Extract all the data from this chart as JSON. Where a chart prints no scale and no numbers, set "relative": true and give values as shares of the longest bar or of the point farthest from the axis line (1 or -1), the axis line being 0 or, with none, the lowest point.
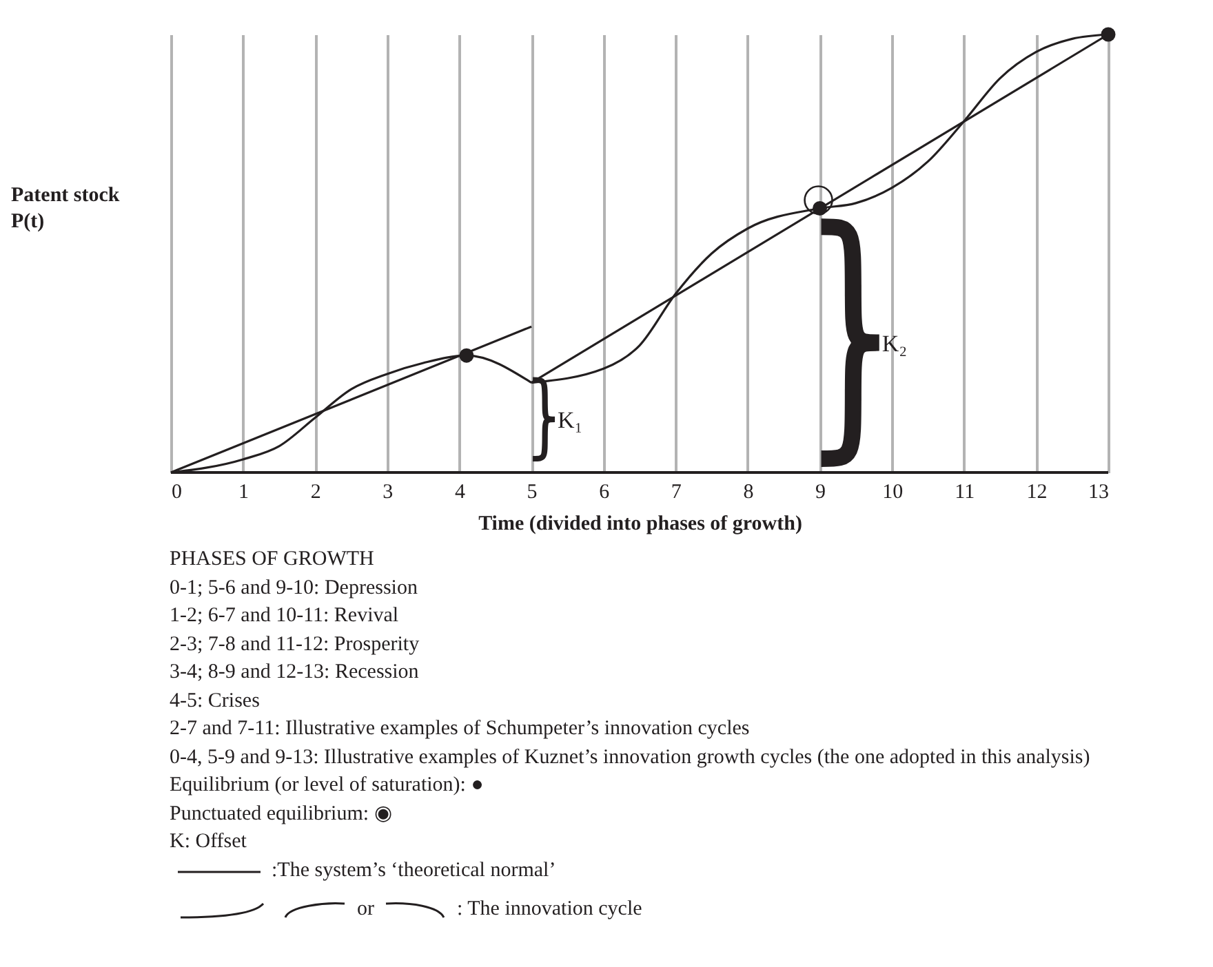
{
  "chart_data": {
    "type": "line",
    "relative": true,
    "xlabel": "Time (divided into phases of growth)",
    "ylabel": "Patent stock P(t)",
    "xlim": [
      0,
      13
    ],
    "xticks": [
      0,
      1,
      2,
      3,
      4,
      5,
      6,
      7,
      8,
      9,
      10,
      11,
      12,
      13
    ],
    "grid": "x",
    "marker": "none",
    "line_style": "solid",
    "series": [
      {
        "color": "#231f20",
        "x": [
          0,
          5
        ],
        "values": [
          0,
          0.333
        ]
      },
      {
        "color": "#231f20",
        "x": [
          5,
          13
        ],
        "values": [
          0.205,
          1
        ]
      },
      {
        "color": "#231f20",
        "x": [
          0,
          1,
          1.5,
          2,
          2.5,
          3,
          3.5,
          4.1,
          5
        ],
        "values": [
          0,
          0.03,
          0.06,
          0.125,
          0.19,
          0.225,
          0.25,
          0.267,
          0.205
        ]
      },
      {
        "color": "#231f20",
        "x": [
          5,
          6,
          6.5,
          7,
          7.5,
          8,
          9,
          9.5,
          10,
          10.5,
          11,
          11.5,
          12,
          12.5,
          13
        ],
        "values": [
          0.205,
          0.237,
          0.29,
          0.408,
          0.5,
          0.557,
          0.603,
          0.615,
          0.65,
          0.71,
          0.802,
          0.9,
          0.96,
          0.99,
          1
        ]
      },
      {
        "type": "scatter",
        "color": "#231f20",
        "marker": "circle",
        "x": [
          4.1,
          9,
          13
        ],
        "values": [
          0.267,
          0.603,
          1
        ]
      }
    ],
    "annotations": [
      "K₁",
      "K₂",
      "PHASES OF GROWTH",
      "0-1; 5-6 and 9-10: Depression",
      "1-2; 6-7 and 10-11: Revival",
      "2-3; 7-8 and 11-12: Prosperity",
      "3-4; 8-9 and 12-13: Recession",
      "4-5: Crises",
      "2-7 and 7-11: Illustrative examples of Schumpeter’s innovation cycles",
      "0-4, 5-9 and 9-13: Illustrative examples of Kuznet’s innovation growth cycles (the one adopted in this analysis)",
      "Equilibrium (or level of saturation): ●",
      "Punctuated equilibrium: ◉",
      "K: Offset",
      ":The system’s ‘theoretical normal’",
      "or",
      ":  The innovation cycle"
    ]
  }
}
